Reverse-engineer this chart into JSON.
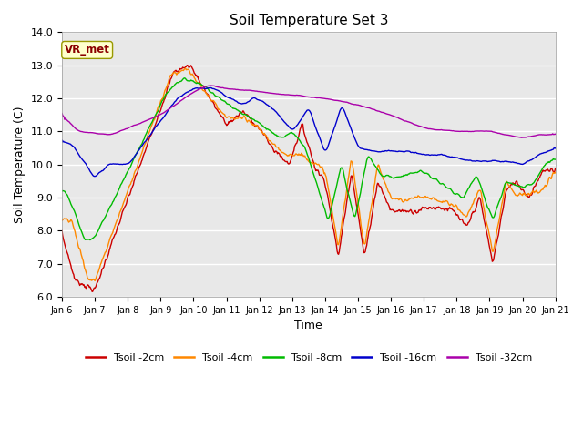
{
  "title": "Soil Temperature Set 3",
  "xlabel": "Time",
  "ylabel": "Soil Temperature (C)",
  "ylim": [
    6.0,
    14.0
  ],
  "yticks": [
    6.0,
    7.0,
    8.0,
    9.0,
    10.0,
    11.0,
    12.0,
    13.0,
    14.0
  ],
  "bg_color": "#e8e8e8",
  "fig_color": "#ffffff",
  "annotation_label": "VR_met",
  "series": [
    {
      "label": "Tsoil -2cm",
      "color": "#cc0000"
    },
    {
      "label": "Tsoil -4cm",
      "color": "#ff8800"
    },
    {
      "label": "Tsoil -8cm",
      "color": "#00bb00"
    },
    {
      "label": "Tsoil -16cm",
      "color": "#0000cc"
    },
    {
      "label": "Tsoil -32cm",
      "color": "#aa00aa"
    }
  ],
  "xtick_labels": [
    "Jan 6",
    "Jan 7",
    "Jan 8",
    "Jan 9",
    "Jan 10",
    "Jan 11",
    "Jan 12",
    "Jan 13",
    "Jan 14",
    "Jan 15",
    "Jan 16",
    "Jan 17",
    "Jan 18",
    "Jan 19",
    "Jan 20",
    "Jan 21"
  ],
  "days": 15
}
